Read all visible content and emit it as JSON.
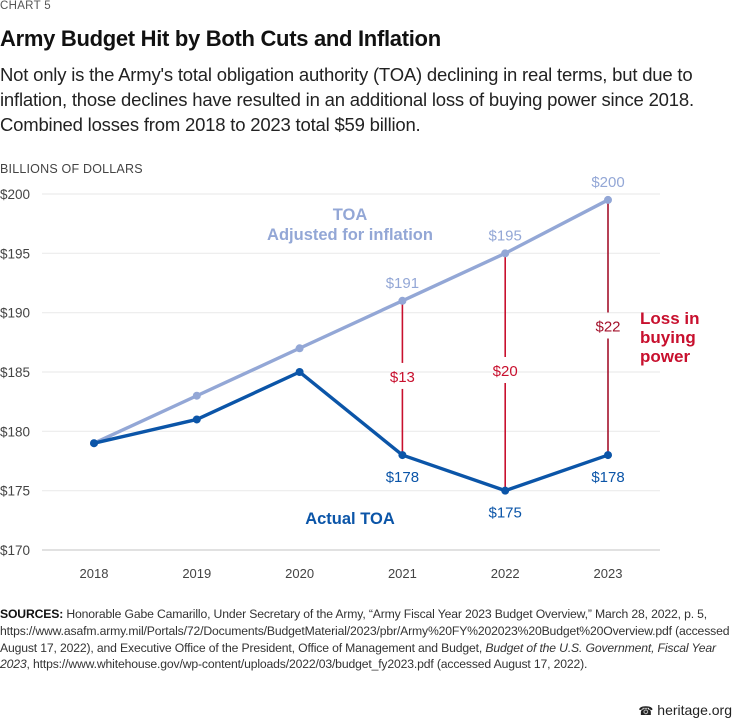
{
  "header": {
    "chart_number": "CHART 5",
    "title": "Army Budget Hit by Both Cuts and Inflation",
    "subtitle": "Not only is the Army's total obligation authority (TOA) declining in real terms, but due to inflation, those declines have resulted in an additional loss of buying power since 2018. Combined losses from 2018 to 2023 total $59 billion."
  },
  "chart_data": {
    "type": "line",
    "title": "Army Budget Hit by Both Cuts and Inflation",
    "ylabel": "BILLIONS OF DOLLARS",
    "xlabel": "",
    "x": [
      "2018",
      "2019",
      "2020",
      "2021",
      "2022",
      "2023"
    ],
    "ylim": [
      170,
      200
    ],
    "yticks": [
      170,
      175,
      180,
      185,
      190,
      195,
      200
    ],
    "ytick_labels": [
      "$170",
      "$175",
      "$180",
      "$185",
      "$190",
      "$195",
      "$200"
    ],
    "grid": true,
    "series": [
      {
        "name": "TOA Adjusted for inflation",
        "label_line1": "TOA",
        "label_line2": "Adjusted for inflation",
        "color": "#93a7d6",
        "values": [
          179,
          183,
          187,
          191,
          195,
          199.5
        ],
        "data_labels": [
          null,
          null,
          null,
          "$191",
          "$195",
          "$200"
        ]
      },
      {
        "name": "Actual TOA",
        "label_line1": "Actual TOA",
        "color": "#0b55a8",
        "values": [
          179,
          181,
          185,
          178,
          175,
          178
        ],
        "data_labels": [
          null,
          null,
          null,
          "$178",
          "$175",
          "$178"
        ]
      }
    ],
    "loss_annotations": {
      "label_line1": "Loss in",
      "label_line2": "buying",
      "label_line3": "power",
      "color": "#c8102e",
      "items": [
        {
          "year": "2021",
          "label": "$13",
          "color": "#c8102e"
        },
        {
          "year": "2022",
          "label": "$20",
          "color": "#c8102e"
        },
        {
          "year": "2023",
          "label": "$22",
          "color": "#a3112b"
        }
      ]
    }
  },
  "footer": {
    "sources_label": "SOURCES:",
    "sources_part1": " Honorable Gabe Camarillo, Under Secretary of the Army, “Army Fiscal Year 2023 Budget Overview,” March 28, 2022, p. 5, https://www.asafm.army.mil/Portals/72/Documents/BudgetMaterial/2023/pbr/Army%20FY%202023%20Budget%20Overview.pdf (accessed August 17, 2022), and Executive Office of the President, Office of Management and Budget, ",
    "sources_italic1": "Budget of the U.S. Government, Fiscal Year 2023",
    "sources_part2": ", https://www.whitehouse.gov/wp-content/uploads/2022/03/budget_fy2023.pdf (accessed August 17, 2022).",
    "brand": "heritage.org",
    "brand_icon": "liberty-bell-icon"
  }
}
